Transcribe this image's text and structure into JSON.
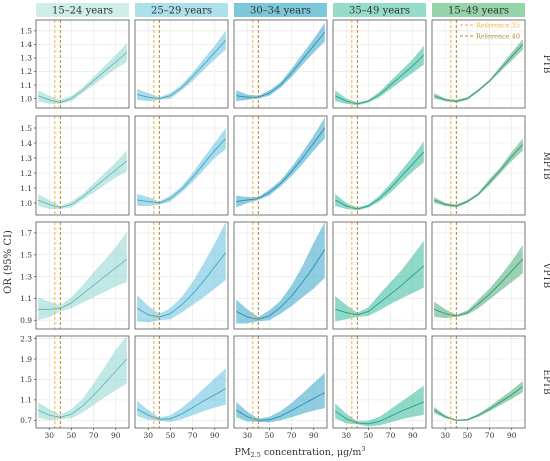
{
  "figure": {
    "ylabel": "OR (95% CI)",
    "xlabel_main": "PM",
    "xlabel_sub": "2.5",
    "xlabel_rest": " concentration, μg/m",
    "xlabel_sup": "3"
  },
  "legend": {
    "items": [
      {
        "label": "Reference 35",
        "color": "#f0b23a"
      },
      {
        "label": "Reference 40",
        "color": "#b8862e"
      }
    ],
    "placement": "top-right of last panel, first row"
  },
  "chart_data": {
    "type": "line",
    "x_ticks": [
      30,
      50,
      70,
      90
    ],
    "xlim": [
      18,
      102
    ],
    "reference_lines": [
      35,
      40
    ],
    "columns": [
      {
        "label": "15–24 years",
        "header_color": "#cfeee9",
        "color": "#8fd6cf"
      },
      {
        "label": "25–29 years",
        "header_color": "#ace1ec",
        "color": "#62c0dc"
      },
      {
        "label": "30–34 years",
        "header_color": "#7cc8db",
        "color": "#34a4c8"
      },
      {
        "label": "35–49 years",
        "header_color": "#96dccb",
        "color": "#35b99c"
      },
      {
        "label": "15–49 years",
        "header_color": "#95d4a8",
        "color": "#48ad7a"
      }
    ],
    "rows": [
      {
        "label": "PTB",
        "ylim": [
          0.93,
          1.58
        ],
        "y_ticks": [
          1.0,
          1.1,
          1.2,
          1.3,
          1.4,
          1.5
        ],
        "curves": [
          {
            "x": [
              20,
              30,
              40,
              50,
              60,
              70,
              80,
              90,
              100
            ],
            "y": [
              1.02,
              0.99,
              0.97,
              1.0,
              1.06,
              1.13,
              1.2,
              1.27,
              1.34
            ],
            "lo": [
              0.98,
              0.96,
              0.96,
              0.98,
              1.04,
              1.1,
              1.16,
              1.22,
              1.27
            ],
            "hi": [
              1.06,
              1.02,
              0.99,
              1.02,
              1.08,
              1.16,
              1.24,
              1.32,
              1.41
            ]
          },
          {
            "x": [
              20,
              30,
              40,
              50,
              60,
              70,
              80,
              90,
              100
            ],
            "y": [
              1.03,
              1.01,
              1.0,
              1.02,
              1.08,
              1.16,
              1.25,
              1.34,
              1.43
            ],
            "lo": [
              0.99,
              0.98,
              0.99,
              1.0,
              1.06,
              1.13,
              1.21,
              1.29,
              1.36
            ],
            "hi": [
              1.07,
              1.04,
              1.01,
              1.04,
              1.1,
              1.19,
              1.29,
              1.39,
              1.5
            ]
          },
          {
            "x": [
              20,
              30,
              40,
              50,
              60,
              70,
              80,
              90,
              100
            ],
            "y": [
              1.02,
              1.01,
              1.01,
              1.04,
              1.1,
              1.19,
              1.29,
              1.39,
              1.49
            ],
            "lo": [
              0.98,
              0.99,
              1.0,
              1.02,
              1.08,
              1.16,
              1.25,
              1.34,
              1.42
            ],
            "hi": [
              1.06,
              1.03,
              1.02,
              1.06,
              1.12,
              1.22,
              1.33,
              1.44,
              1.56
            ]
          },
          {
            "x": [
              20,
              30,
              40,
              50,
              60,
              70,
              80,
              90,
              100
            ],
            "y": [
              1.02,
              0.98,
              0.96,
              0.98,
              1.03,
              1.1,
              1.17,
              1.24,
              1.32
            ],
            "lo": [
              0.98,
              0.96,
              0.95,
              0.97,
              1.01,
              1.07,
              1.13,
              1.19,
              1.25
            ],
            "hi": [
              1.06,
              1.0,
              0.97,
              0.99,
              1.05,
              1.13,
              1.21,
              1.29,
              1.39
            ]
          },
          {
            "x": [
              20,
              30,
              40,
              50,
              60,
              70,
              80,
              90,
              100
            ],
            "y": [
              1.02,
              0.99,
              0.98,
              1.0,
              1.06,
              1.13,
              1.22,
              1.31,
              1.4
            ],
            "lo": [
              1.0,
              0.98,
              0.97,
              0.99,
              1.05,
              1.12,
              1.2,
              1.28,
              1.36
            ],
            "hi": [
              1.04,
              1.0,
              0.99,
              1.01,
              1.07,
              1.14,
              1.24,
              1.34,
              1.44
            ]
          }
        ]
      },
      {
        "label": "MPTB",
        "ylim": [
          0.92,
          1.58
        ],
        "y_ticks": [
          1.0,
          1.1,
          1.2,
          1.3,
          1.4,
          1.5
        ],
        "curves": [
          {
            "x": [
              20,
              30,
              40,
              50,
              60,
              70,
              80,
              90,
              100
            ],
            "y": [
              1.02,
              0.99,
              0.97,
              0.99,
              1.04,
              1.1,
              1.16,
              1.22,
              1.28
            ],
            "lo": [
              0.98,
              0.96,
              0.96,
              0.97,
              1.02,
              1.07,
              1.12,
              1.17,
              1.21
            ],
            "hi": [
              1.06,
              1.02,
              0.98,
              1.01,
              1.06,
              1.13,
              1.2,
              1.27,
              1.35
            ]
          },
          {
            "x": [
              20,
              30,
              40,
              50,
              60,
              70,
              80,
              90,
              100
            ],
            "y": [
              1.02,
              1.01,
              1.0,
              1.03,
              1.09,
              1.17,
              1.26,
              1.35,
              1.43
            ],
            "lo": [
              0.98,
              0.98,
              0.99,
              1.01,
              1.07,
              1.14,
              1.22,
              1.3,
              1.36
            ],
            "hi": [
              1.06,
              1.04,
              1.01,
              1.05,
              1.11,
              1.2,
              1.3,
              1.4,
              1.5
            ]
          },
          {
            "x": [
              20,
              30,
              40,
              50,
              60,
              70,
              80,
              90,
              100
            ],
            "y": [
              1.01,
              1.02,
              1.03,
              1.07,
              1.13,
              1.21,
              1.3,
              1.4,
              1.5
            ],
            "lo": [
              0.97,
              1.0,
              1.02,
              1.05,
              1.11,
              1.18,
              1.26,
              1.35,
              1.43
            ],
            "hi": [
              1.05,
              1.04,
              1.04,
              1.09,
              1.15,
              1.24,
              1.34,
              1.45,
              1.57
            ]
          },
          {
            "x": [
              20,
              30,
              40,
              50,
              60,
              70,
              80,
              90,
              100
            ],
            "y": [
              1.02,
              0.98,
              0.96,
              0.98,
              1.03,
              1.1,
              1.18,
              1.26,
              1.34
            ],
            "lo": [
              0.98,
              0.96,
              0.95,
              0.97,
              1.01,
              1.07,
              1.14,
              1.21,
              1.27
            ],
            "hi": [
              1.06,
              1.0,
              0.97,
              0.99,
              1.05,
              1.13,
              1.22,
              1.31,
              1.41
            ]
          },
          {
            "x": [
              20,
              30,
              40,
              50,
              60,
              70,
              80,
              90,
              100
            ],
            "y": [
              1.02,
              0.99,
              0.98,
              1.01,
              1.06,
              1.14,
              1.22,
              1.31,
              1.39
            ],
            "lo": [
              1.0,
              0.98,
              0.97,
              1.0,
              1.05,
              1.12,
              1.2,
              1.28,
              1.35
            ],
            "hi": [
              1.04,
              1.0,
              0.99,
              1.02,
              1.07,
              1.16,
              1.24,
              1.34,
              1.43
            ]
          }
        ]
      },
      {
        "label": "VPTB",
        "ylim": [
          0.82,
          1.8
        ],
        "y_ticks": [
          0.9,
          1.1,
          1.3,
          1.5,
          1.7
        ],
        "curves": [
          {
            "x": [
              20,
              30,
              40,
              50,
              60,
              70,
              80,
              90,
              100
            ],
            "y": [
              1.0,
              1.0,
              1.01,
              1.06,
              1.14,
              1.22,
              1.3,
              1.38,
              1.46
            ],
            "lo": [
              0.9,
              0.93,
              0.98,
              1.01,
              1.06,
              1.11,
              1.16,
              1.21,
              1.25
            ],
            "hi": [
              1.11,
              1.07,
              1.04,
              1.11,
              1.22,
              1.34,
              1.45,
              1.57,
              1.71
            ]
          },
          {
            "x": [
              20,
              30,
              40,
              50,
              60,
              70,
              80,
              90,
              100
            ],
            "y": [
              1.01,
              0.95,
              0.93,
              0.96,
              1.04,
              1.14,
              1.26,
              1.39,
              1.52
            ],
            "lo": [
              0.89,
              0.88,
              0.9,
              0.91,
              0.97,
              1.04,
              1.11,
              1.19,
              1.27
            ],
            "hi": [
              1.13,
              1.03,
              0.96,
              1.01,
              1.11,
              1.25,
              1.42,
              1.6,
              1.8
            ]
          },
          {
            "x": [
              20,
              30,
              40,
              50,
              60,
              70,
              80,
              90,
              100
            ],
            "y": [
              0.98,
              0.93,
              0.91,
              0.94,
              1.02,
              1.12,
              1.25,
              1.39,
              1.55
            ],
            "lo": [
              0.87,
              0.87,
              0.89,
              0.9,
              0.96,
              1.03,
              1.11,
              1.19,
              1.29
            ],
            "hi": [
              1.09,
              1.0,
              0.93,
              0.99,
              1.08,
              1.22,
              1.4,
              1.61,
              1.8
            ]
          },
          {
            "x": [
              20,
              30,
              40,
              50,
              60,
              70,
              80,
              90,
              100
            ],
            "y": [
              1.0,
              0.97,
              0.95,
              0.98,
              1.06,
              1.14,
              1.22,
              1.31,
              1.4
            ],
            "lo": [
              0.89,
              0.91,
              0.93,
              0.94,
              0.99,
              1.05,
              1.1,
              1.15,
              1.2
            ],
            "hi": [
              1.12,
              1.04,
              0.97,
              1.02,
              1.14,
              1.25,
              1.36,
              1.49,
              1.63
            ]
          },
          {
            "x": [
              20,
              30,
              40,
              50,
              60,
              70,
              80,
              90,
              100
            ],
            "y": [
              1.0,
              0.96,
              0.94,
              0.97,
              1.05,
              1.14,
              1.24,
              1.35,
              1.46
            ],
            "lo": [
              0.93,
              0.92,
              0.93,
              0.95,
              1.01,
              1.09,
              1.17,
              1.25,
              1.33
            ],
            "hi": [
              1.07,
              1.0,
              0.95,
              0.99,
              1.09,
              1.19,
              1.31,
              1.44,
              1.59
            ]
          }
        ]
      },
      {
        "label": "EPTB",
        "ylim": [
          0.55,
          2.35
        ],
        "y_ticks": [
          0.7,
          1.1,
          1.5,
          1.9,
          2.3
        ],
        "curves": [
          {
            "x": [
              20,
              30,
              40,
              50,
              60,
              70,
              80,
              90,
              100
            ],
            "y": [
              0.9,
              0.8,
              0.76,
              0.82,
              0.98,
              1.19,
              1.42,
              1.66,
              1.9
            ],
            "lo": [
              0.75,
              0.7,
              0.72,
              0.74,
              0.85,
              1.0,
              1.15,
              1.29,
              1.42
            ],
            "hi": [
              1.05,
              0.92,
              0.81,
              0.92,
              1.12,
              1.42,
              1.74,
              2.08,
              2.35
            ]
          },
          {
            "x": [
              20,
              30,
              40,
              50,
              60,
              70,
              80,
              90,
              100
            ],
            "y": [
              0.92,
              0.8,
              0.72,
              0.73,
              0.82,
              0.95,
              1.08,
              1.2,
              1.32
            ],
            "lo": [
              0.78,
              0.71,
              0.69,
              0.67,
              0.72,
              0.8,
              0.88,
              0.95,
              1.01
            ],
            "hi": [
              1.08,
              0.9,
              0.75,
              0.8,
              0.94,
              1.12,
              1.32,
              1.52,
              1.72
            ]
          },
          {
            "x": [
              20,
              30,
              40,
              50,
              60,
              70,
              80,
              90,
              100
            ],
            "y": [
              0.9,
              0.77,
              0.7,
              0.71,
              0.78,
              0.89,
              1.01,
              1.13,
              1.24
            ],
            "lo": [
              0.76,
              0.68,
              0.67,
              0.66,
              0.7,
              0.76,
              0.83,
              0.89,
              0.94
            ],
            "hi": [
              1.06,
              0.87,
              0.73,
              0.77,
              0.88,
              1.04,
              1.23,
              1.43,
              1.63
            ]
          },
          {
            "x": [
              20,
              30,
              40,
              50,
              60,
              70,
              80,
              90,
              100
            ],
            "y": [
              0.88,
              0.73,
              0.65,
              0.63,
              0.68,
              0.78,
              0.88,
              0.97,
              1.06
            ],
            "lo": [
              0.74,
              0.64,
              0.62,
              0.58,
              0.6,
              0.66,
              0.72,
              0.77,
              0.81
            ],
            "hi": [
              1.03,
              0.83,
              0.68,
              0.69,
              0.77,
              0.92,
              1.07,
              1.22,
              1.38
            ]
          },
          {
            "x": [
              20,
              30,
              40,
              50,
              60,
              70,
              80,
              90,
              100
            ],
            "y": [
              0.9,
              0.77,
              0.7,
              0.71,
              0.8,
              0.92,
              1.06,
              1.2,
              1.36
            ],
            "lo": [
              0.84,
              0.74,
              0.69,
              0.69,
              0.77,
              0.88,
              1.0,
              1.12,
              1.25
            ],
            "hi": [
              0.96,
              0.8,
              0.71,
              0.73,
              0.83,
              0.97,
              1.13,
              1.29,
              1.47
            ]
          }
        ]
      }
    ]
  }
}
